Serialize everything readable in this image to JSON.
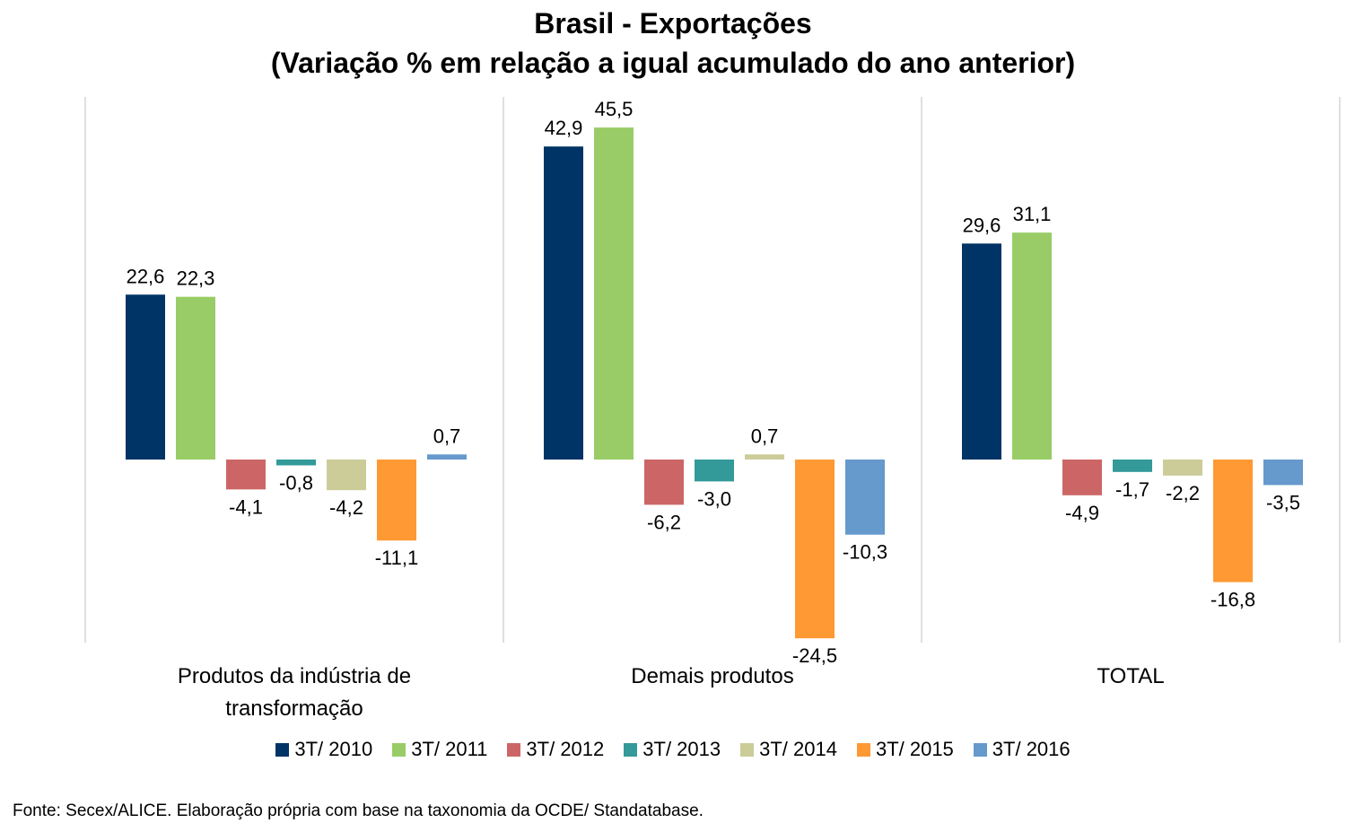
{
  "chart_data": {
    "type": "bar",
    "title": "Brasil - Exportações",
    "subtitle": "(Variação % em relação a igual acumulado do ano anterior)",
    "categories": [
      "Produtos da indústria de transformação",
      "Demais produtos",
      "TOTAL"
    ],
    "category_lines": [
      [
        "Produtos da indústria de",
        "transformação"
      ],
      [
        "Demais produtos"
      ],
      [
        "TOTAL"
      ]
    ],
    "series": [
      {
        "name": "3T/ 2010",
        "color": "#003366",
        "values": [
          22.6,
          42.9,
          29.6
        ],
        "labels": [
          "22,6",
          "42,9",
          "29,6"
        ]
      },
      {
        "name": "3T/ 2011",
        "color": "#99CC66",
        "values": [
          22.3,
          45.5,
          31.1
        ],
        "labels": [
          "22,3",
          "45,5",
          "31,1"
        ]
      },
      {
        "name": "3T/ 2012",
        "color": "#CC6666",
        "values": [
          -4.1,
          -6.2,
          -4.9
        ],
        "labels": [
          "-4,1",
          "-6,2",
          "-4,9"
        ]
      },
      {
        "name": "3T/ 2013",
        "color": "#339999",
        "values": [
          -0.8,
          -3.0,
          -1.7
        ],
        "labels": [
          "-0,8",
          "-3,0",
          "-1,7"
        ]
      },
      {
        "name": "3T/ 2014",
        "color": "#CCCC99",
        "values": [
          -4.2,
          0.7,
          -2.2
        ],
        "labels": [
          "-4,2",
          "0,7",
          "-2,2"
        ]
      },
      {
        "name": "3T/ 2015",
        "color": "#FF9933",
        "values": [
          -11.1,
          -24.5,
          -16.8
        ],
        "labels": [
          "-11,1",
          "-24,5",
          "-16,8"
        ]
      },
      {
        "name": "3T/ 2016",
        "color": "#6699CC",
        "values": [
          0.7,
          -10.3,
          -3.5
        ],
        "labels": [
          "0,7",
          "-10,3",
          "-3,5"
        ]
      }
    ],
    "grid": false,
    "legend_position": "bottom",
    "source": "Fonte: Secex/ALICE. Elaboração própria com base na taxonomia da OCDE/ Standatabase."
  }
}
